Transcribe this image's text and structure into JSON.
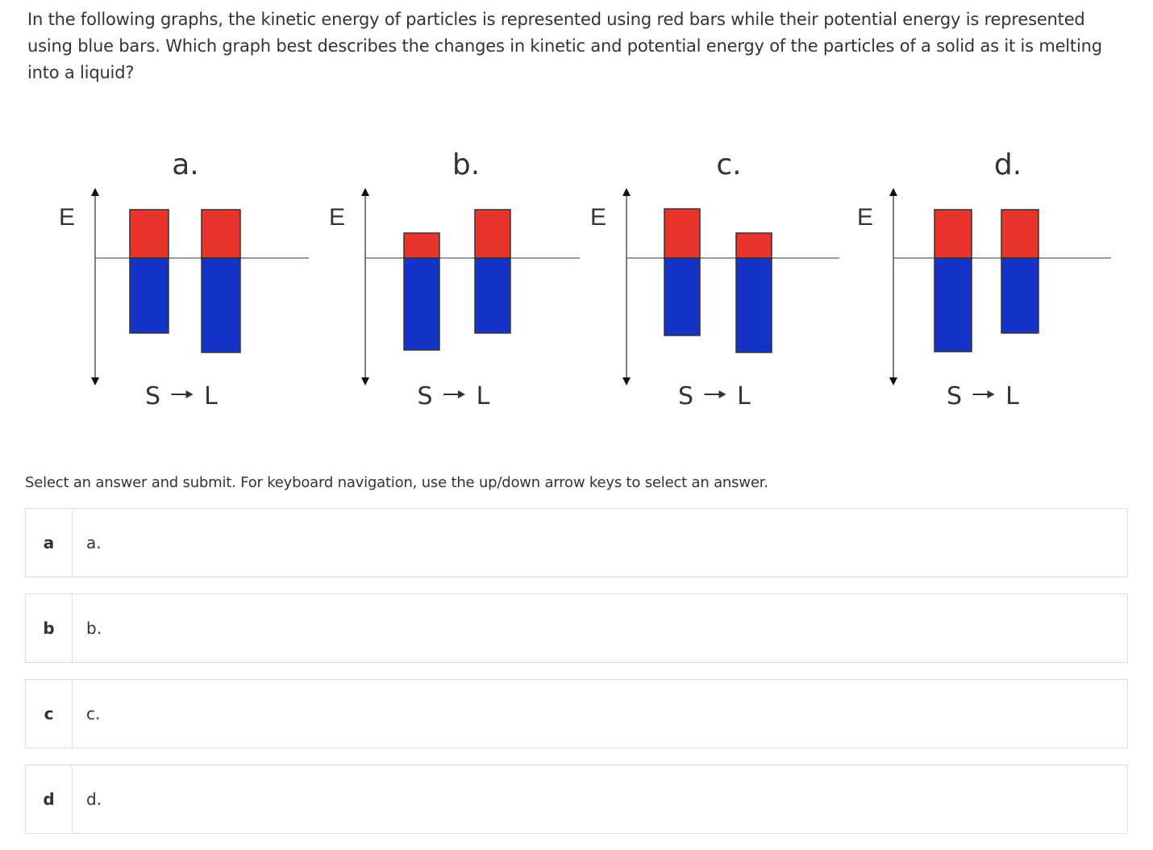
{
  "question": {
    "text": "In the following graphs, the kinetic energy of particles is represented using red bars while their potential energy is represented using blue bars. Which graph best describes the changes in kinetic and potential energy of the particles of a solid as it is melting into a liquid?"
  },
  "figure": {
    "axis_label": "E",
    "transition_from": "S",
    "transition_to": "L",
    "colors": {
      "kinetic": "#e8342a",
      "potential": "#1434c8",
      "axis": "#9a9a9a"
    },
    "graphs": [
      {
        "title": "a.",
        "solid": {
          "kinetic": 60,
          "potential": 93
        },
        "liquid": {
          "kinetic": 60,
          "potential": 117
        }
      },
      {
        "title": "b.",
        "solid": {
          "kinetic": 31,
          "potential": 114
        },
        "liquid": {
          "kinetic": 60,
          "potential": 93
        }
      },
      {
        "title": "c.",
        "solid": {
          "kinetic": 61,
          "potential": 96
        },
        "liquid": {
          "kinetic": 31,
          "potential": 117
        }
      },
      {
        "title": "d.",
        "solid": {
          "kinetic": 60,
          "potential": 116
        },
        "liquid": {
          "kinetic": 60,
          "potential": 93
        }
      }
    ]
  },
  "instruction": "Select an answer and submit. For keyboard navigation, use the up/down arrow keys to select an answer.",
  "choices": [
    {
      "key": "a",
      "label": "a."
    },
    {
      "key": "b",
      "label": "b."
    },
    {
      "key": "c",
      "label": "c."
    },
    {
      "key": "d",
      "label": "d."
    }
  ]
}
